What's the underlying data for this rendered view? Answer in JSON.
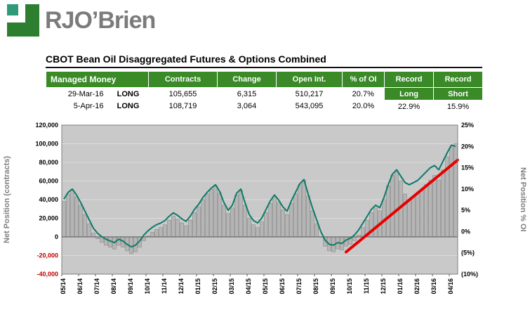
{
  "logo": {
    "text": "RJO’Brien"
  },
  "title": "CBOT Bean Oil Disaggregated Futures & Options Combined",
  "table": {
    "header": [
      "Managed Money",
      "Contracts",
      "Change",
      "Open Int.",
      "% of OI",
      "Record",
      "Record"
    ],
    "rows": [
      {
        "date": "29-Mar-16",
        "position": "LONG",
        "contracts": "105,655",
        "change": "6,315",
        "open_int": "510,217",
        "pct_oi": "20.7%",
        "record_long": "Long",
        "record_short": "Short"
      },
      {
        "date": "5-Apr-16",
        "position": "LONG",
        "contracts": "108,719",
        "change": "3,064",
        "open_int": "543,095",
        "pct_oi": "20.0%",
        "record_long": "22.9%",
        "record_short": "15.9%"
      }
    ]
  },
  "chart_data": {
    "type": "bar",
    "subtype": "combo-bar-line",
    "title": "",
    "ylabel_left": "Net Position (contracts)",
    "ylabel_right": "Net Position % OI",
    "plot_bg": "#c9c9c9",
    "grid_color": "#dcdcdc",
    "neg_color": "#c00000",
    "left_axis": {
      "min": -40000,
      "max": 120000,
      "step": 20000,
      "tick_labels": [
        "120,000",
        "100,000",
        "80,000",
        "60,000",
        "40,000",
        "20,000",
        "0",
        "-20,000",
        "-40,000"
      ]
    },
    "right_axis": {
      "min": -10,
      "max": 25,
      "step": 5,
      "tick_labels": [
        "25%",
        "20%",
        "15%",
        "10%",
        "5%",
        "0%",
        "(5%)",
        "(10%)"
      ]
    },
    "x_tick_labels": [
      "05/14",
      "06/14",
      "07/14",
      "08/14",
      "09/14",
      "10/14",
      "11/14",
      "12/14",
      "01/15",
      "02/15",
      "03/15",
      "04/15",
      "05/15",
      "06/15",
      "07/15",
      "08/15",
      "09/15",
      "10/15",
      "11/15",
      "12/15",
      "01/16",
      "02/16",
      "03/16",
      "04/16"
    ],
    "points_per_month": 4,
    "series": [
      {
        "name": "Net Position (contracts)",
        "type": "bar",
        "color": "#b5b5b5",
        "stroke": "#7f7f7f",
        "values": [
          38000,
          46000,
          50000,
          43000,
          34000,
          24000,
          14000,
          4000,
          -2000,
          -6000,
          -9000,
          -11000,
          -13000,
          -9000,
          -11000,
          -15000,
          -18000,
          -16000,
          -11000,
          -4000,
          1000,
          5000,
          8000,
          10000,
          13000,
          18000,
          22000,
          19000,
          15000,
          12000,
          18000,
          26000,
          32000,
          40000,
          46000,
          51000,
          55000,
          47000,
          34000,
          25000,
          31000,
          45000,
          50000,
          34000,
          20000,
          13000,
          10000,
          16000,
          26000,
          36000,
          43000,
          37000,
          29000,
          24000,
          36000,
          46000,
          56000,
          61000,
          44000,
          28000,
          14000,
          0,
          -10000,
          -15000,
          -16000,
          -13000,
          -14000,
          -10000,
          -8000,
          -4000,
          2000,
          10000,
          18000,
          26000,
          31000,
          28000,
          40000,
          55000,
          66000,
          71000,
          60000,
          46000,
          40000,
          43000,
          46000,
          51000,
          56000,
          61000,
          66000,
          61000,
          72000,
          86000,
          96000,
          100000
        ]
      },
      {
        "name": "Net Position % OI",
        "type": "line",
        "color": "#0e7a68",
        "values": [
          7.6,
          9.2,
          10,
          8.6,
          6.8,
          4.8,
          2.8,
          0.8,
          -0.4,
          -1.2,
          -1.8,
          -2.2,
          -2.6,
          -1.8,
          -2.2,
          -3,
          -3.6,
          -3.2,
          -2.2,
          -0.8,
          0.2,
          1,
          1.6,
          2,
          2.6,
          3.6,
          4.4,
          3.8,
          3,
          2.4,
          3.6,
          5.2,
          6.4,
          8,
          9.2,
          10.2,
          11,
          9.4,
          6.8,
          5,
          6.2,
          9,
          10,
          6.8,
          4,
          2.6,
          2,
          3.2,
          5.2,
          7.2,
          8.6,
          7.4,
          5.8,
          4.8,
          7.2,
          9.2,
          11.2,
          12.2,
          8.8,
          5.6,
          2.8,
          0,
          -2,
          -3,
          -3.2,
          -2.6,
          -2.8,
          -2,
          -1.6,
          -0.8,
          0.4,
          2,
          3.6,
          5.2,
          6.2,
          5.6,
          8,
          11,
          13.5,
          14.5,
          13,
          11.5,
          11,
          11.5,
          12,
          13,
          14,
          15,
          15.5,
          14.5,
          16.5,
          18.5,
          20.3,
          20
        ]
      }
    ],
    "trendline": {
      "color": "#e60000",
      "start_index": 67,
      "start_pct": -4.8,
      "end_index": 93.5,
      "end_pct": 16.8
    }
  }
}
